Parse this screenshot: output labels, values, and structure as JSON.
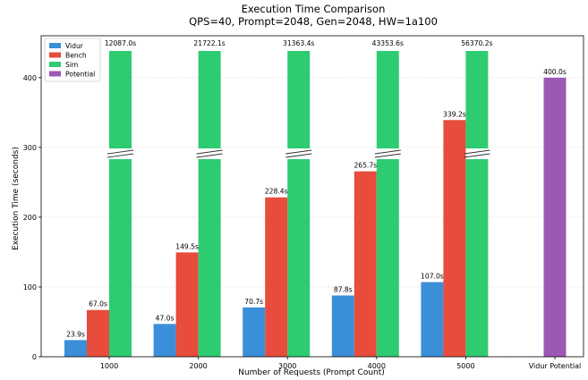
{
  "chart_data": {
    "type": "bar",
    "title": "Execution Time Comparison",
    "subtitle": "QPS=40, Prompt=2048, Gen=2048, HW=1a100",
    "xlabel": "Number of Requests (Prompt Count)",
    "ylabel": "Execution Time (seconds)",
    "categories": [
      "1000",
      "2000",
      "3000",
      "4000",
      "5000",
      "Vidur Potential"
    ],
    "ylim": [
      0,
      460
    ],
    "yticks": [
      0,
      100,
      200,
      300,
      400
    ],
    "grid": true,
    "legend_position": "top-left",
    "axis_break": true,
    "series": [
      {
        "name": "Vidur",
        "color": "#3b8fd9",
        "values": [
          23.9,
          47.0,
          70.7,
          87.8,
          107.0,
          null
        ],
        "labels": [
          "23.9s",
          "47.0s",
          "70.7s",
          "87.8s",
          "107.0s",
          ""
        ]
      },
      {
        "name": "Bench",
        "color": "#e74c3c",
        "values": [
          67.0,
          149.5,
          228.4,
          265.7,
          339.2,
          null
        ],
        "labels": [
          "67.0s",
          "149.5s",
          "228.4s",
          "265.7s",
          "339.2s",
          ""
        ]
      },
      {
        "name": "Sim",
        "color": "#2ecc71",
        "values": [
          12087.0,
          21722.1,
          31363.4,
          43353.6,
          56370.2,
          null
        ],
        "labels": [
          "12087.0s",
          "21722.1s",
          "31363.4s",
          "43353.6s",
          "56370.2s",
          ""
        ]
      },
      {
        "name": "Potential",
        "color": "#9b59b6",
        "values": [
          null,
          null,
          null,
          null,
          null,
          400.0
        ],
        "labels": [
          "",
          "",
          "",
          "",
          "",
          "400.0s"
        ]
      }
    ]
  }
}
